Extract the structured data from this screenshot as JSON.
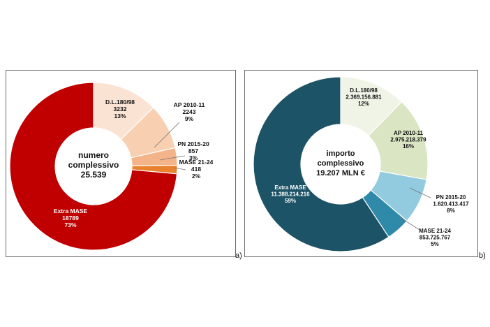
{
  "chart_data": [
    {
      "type": "pie",
      "panel_tag": "a)",
      "center_text": [
        "numero",
        "complessivo",
        "25.539"
      ],
      "slices": [
        {
          "name": "D.L.180/98",
          "value_label": "3232",
          "pct_label": "13%",
          "value": 3232,
          "color": "#fbe3d3"
        },
        {
          "name": "AP 2010-11",
          "value_label": "2243",
          "pct_label": "9%",
          "value": 2243,
          "color": "#f8cfb1"
        },
        {
          "name": "PN 2015-20",
          "value_label": "857",
          "pct_label": "3%",
          "value": 857,
          "color": "#f4b489"
        },
        {
          "name": "MASE 21-24",
          "value_label": "418",
          "pct_label": "2%",
          "value": 418,
          "color": "#e8822e"
        },
        {
          "name": "Extra MASE",
          "value_label": "18789",
          "pct_label": "73%",
          "value": 18789,
          "color": "#c00000"
        }
      ]
    },
    {
      "type": "pie",
      "panel_tag": "b)",
      "center_text": [
        "importo",
        "complessivo",
        "19.207 MLN €"
      ],
      "slices": [
        {
          "name": "D.L.180/98",
          "value_label": "2.369.156.881",
          "pct_label": "12%",
          "value": 2369156881,
          "color": "#f0f4e6"
        },
        {
          "name": "AP 2010-11",
          "value_label": "2.975.218.379",
          "pct_label": "16%",
          "value": 2975218379,
          "color": "#d9e5c3"
        },
        {
          "name": "PN 2015-20",
          "value_label": "1.620.413.417",
          "pct_label": "8%",
          "value": 1620413417,
          "color": "#92cbe0"
        },
        {
          "name": "MASE 21-24",
          "value_label": "853.725.767",
          "pct_label": "5%",
          "value": 853725767,
          "color": "#2e8aa8"
        },
        {
          "name": "Extra MASE",
          "value_label": "11.388.214.216",
          "pct_label": "59%",
          "value": 11388214216,
          "color": "#1d5366"
        }
      ]
    }
  ]
}
